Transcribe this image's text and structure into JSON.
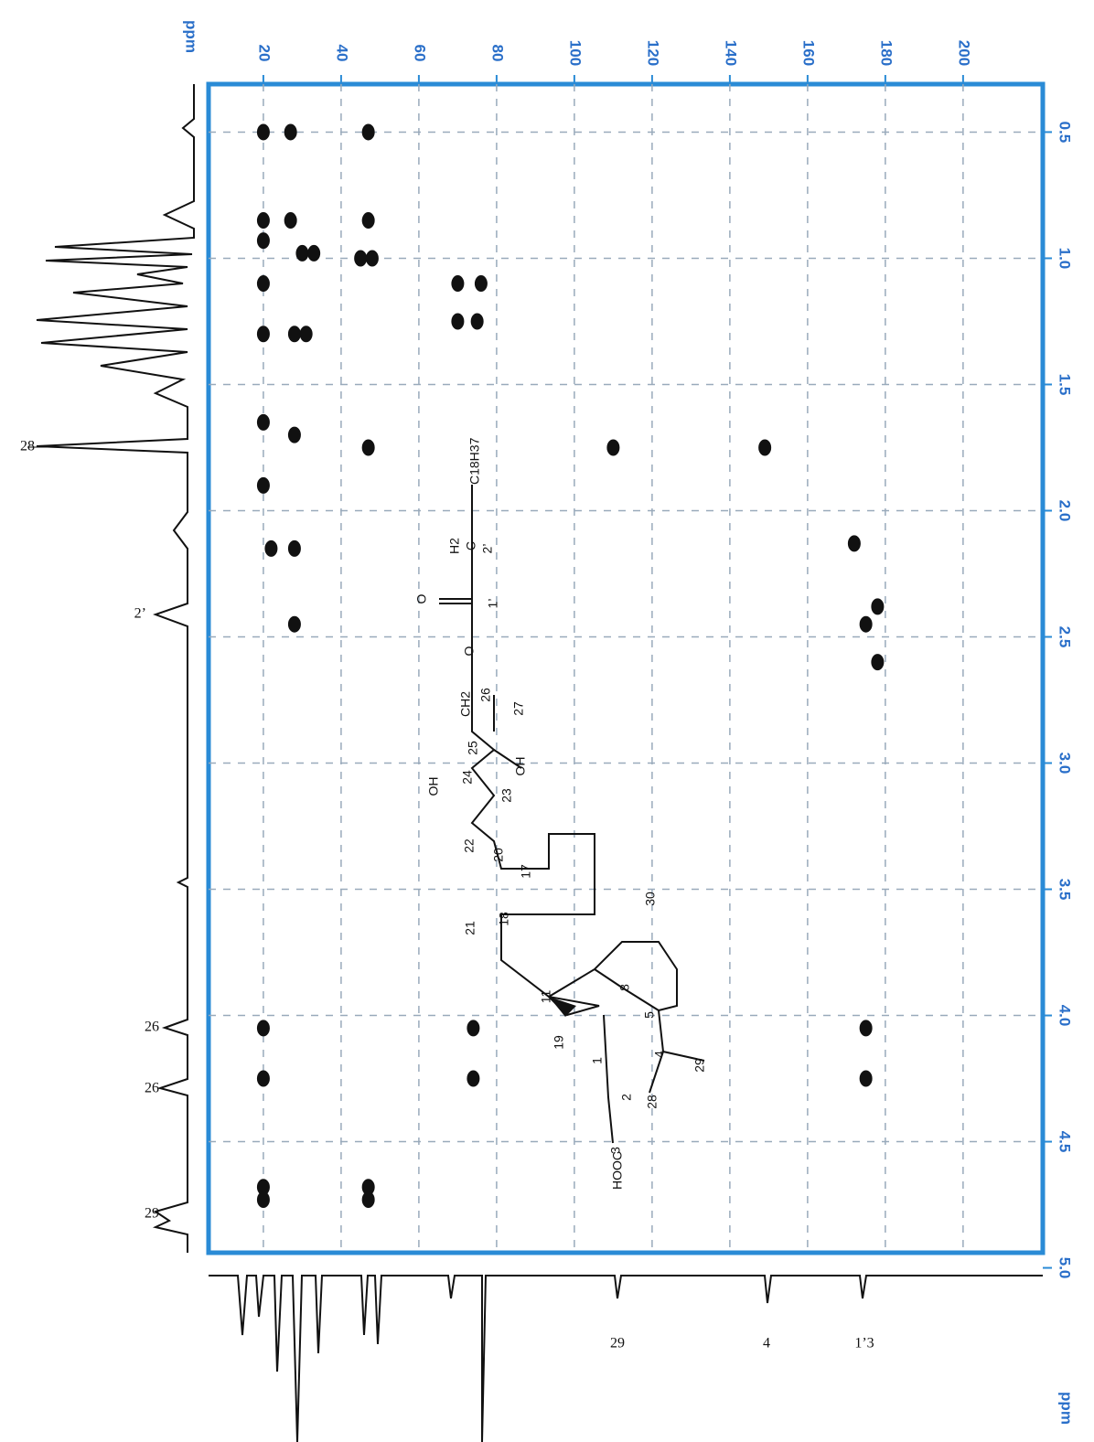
{
  "chart_data": {
    "type": "scatter",
    "x_unit_label": "ppm",
    "y_unit_label": "ppm",
    "x": [
      20,
      27,
      47,
      20,
      27,
      47,
      20,
      30,
      33,
      45,
      48,
      20,
      70,
      76,
      20,
      28,
      31,
      70,
      75,
      20,
      28,
      47,
      110,
      149,
      20,
      22,
      28,
      172,
      28,
      175,
      178,
      178,
      20,
      74,
      175,
      20,
      74,
      175,
      20,
      20,
      47,
      47
    ],
    "values": [
      0.5,
      0.5,
      0.5,
      0.85,
      0.85,
      0.85,
      0.93,
      0.98,
      0.98,
      1.0,
      1.0,
      1.1,
      1.1,
      1.1,
      1.3,
      1.3,
      1.3,
      1.25,
      1.25,
      1.65,
      1.7,
      1.75,
      1.75,
      1.75,
      1.9,
      2.15,
      2.15,
      2.13,
      2.45,
      2.45,
      2.38,
      2.6,
      4.05,
      4.05,
      4.05,
      4.25,
      4.25,
      4.25,
      4.68,
      4.73,
      4.68,
      4.73
    ],
    "color": "#111111",
    "xlim": [
      5.9,
      220.5
    ],
    "xticks": [
      20,
      40,
      60,
      80,
      100,
      120,
      140,
      160,
      180,
      200
    ],
    "ylim": [
      0.31,
      4.94
    ],
    "yticks": [
      0.5,
      {
        "value": 1,
        "label": "1.0"
      },
      1.5,
      {
        "value": 2,
        "label": "2.0"
      },
      2.5,
      {
        "value": 3,
        "label": "3.0"
      },
      3.5,
      {
        "value": 4,
        "label": "4.0"
      },
      4.5,
      {
        "value": 5,
        "label": "5.0"
      }
    ],
    "grid": true,
    "proton_labels": [
      "28",
      "2’",
      "26",
      "26",
      "29"
    ],
    "carbon_labels": [
      "29",
      "4",
      "1’3"
    ]
  },
  "structure": {
    "labels": [
      "C18H37",
      "H2",
      "C",
      "2’",
      "O",
      "1’",
      "O",
      "CH2",
      "26",
      "27",
      "25",
      "OH",
      "OH",
      "24",
      "23",
      "22",
      "20",
      "17",
      "21",
      "18",
      "30",
      "8",
      "11",
      "19",
      "5",
      "4",
      "29",
      "1",
      "2",
      "28",
      "3",
      "HOOC"
    ]
  }
}
